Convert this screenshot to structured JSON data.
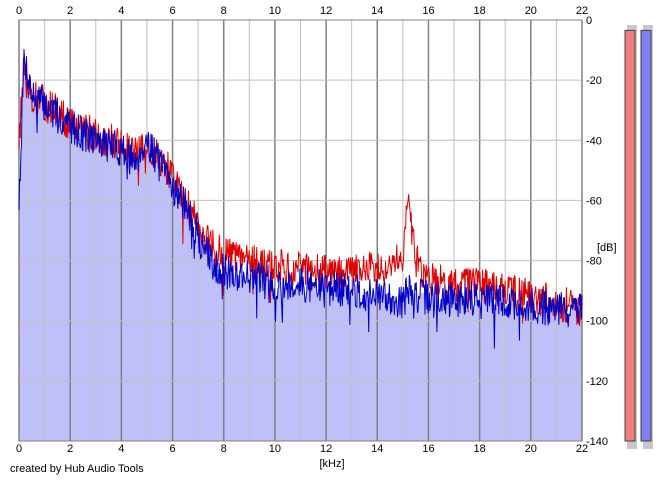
{
  "credit": "created by Hub Audio Tools",
  "colors": {
    "background": "#ffffff",
    "plot_fill": "#c0c0f8",
    "grid_major": "#808080",
    "grid_minor": "#c0c0c0",
    "left_channel": "#e00000",
    "right_channel": "#0000c8",
    "meter_left": "#f08080",
    "meter_right": "#8080f0"
  },
  "chart_data": {
    "type": "area",
    "title": "",
    "xlabel": "[kHz]",
    "ylabel": "[dB]",
    "xlim": [
      0,
      22
    ],
    "ylim": [
      -140,
      0
    ],
    "x_ticks": [
      "0",
      "2",
      "4",
      "6",
      "8",
      "10",
      "12",
      "14",
      "16",
      "18",
      "20",
      "22"
    ],
    "y_ticks": [
      "0",
      "-20",
      "-40",
      "-60",
      "-80",
      "-100",
      "-120",
      "-140"
    ],
    "grid": true,
    "legend": "none",
    "x": [
      0,
      0.2,
      0.5,
      1,
      1.5,
      2,
      3,
      4,
      4.5,
      5,
      5.5,
      6,
      6.5,
      7,
      7.5,
      8,
      9,
      10,
      11,
      12,
      13,
      14,
      14.5,
      15,
      15.2,
      15.5,
      16,
      17,
      18,
      19,
      20,
      21,
      22
    ],
    "series": [
      {
        "values": [
          -40,
          -15,
          -25,
          -28,
          -30,
          -35,
          -38,
          -42,
          -45,
          -42,
          -46,
          -52,
          -60,
          -68,
          -75,
          -78,
          -80,
          -82,
          -83,
          -84,
          -84,
          -82,
          -80,
          -78,
          -58,
          -80,
          -86,
          -88,
          -88,
          -90,
          -92,
          -94,
          -96
        ]
      },
      {
        "values": [
          -60,
          -12,
          -25,
          -28,
          -32,
          -35,
          -40,
          -43,
          -47,
          -40,
          -48,
          -55,
          -62,
          -72,
          -80,
          -84,
          -85,
          -88,
          -88,
          -89,
          -90,
          -92,
          -92,
          -94,
          -90,
          -92,
          -92,
          -93,
          -92,
          -94,
          -95,
          -96,
          -97
        ]
      }
    ]
  },
  "meters": [
    {
      "level": 0.98
    },
    {
      "level": 0.98
    }
  ]
}
